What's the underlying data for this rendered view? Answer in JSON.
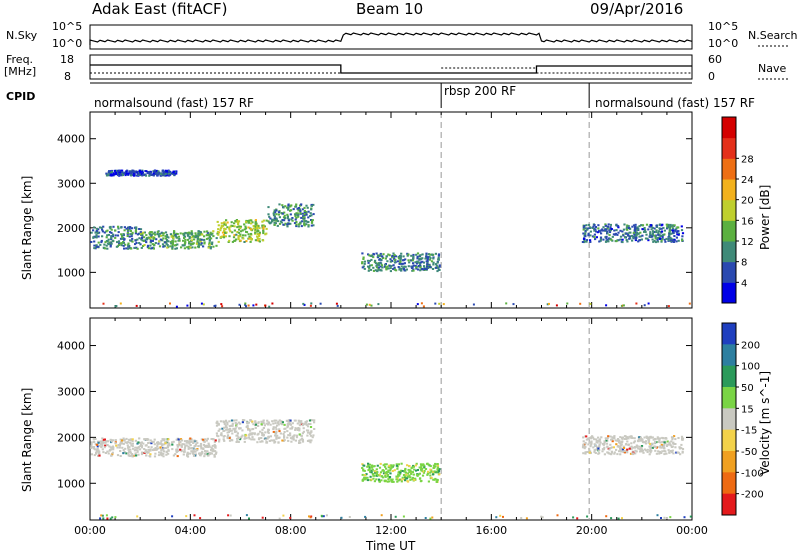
{
  "header": {
    "radar": "Adak East (fitACF)",
    "beam": "Beam 10",
    "date": "09/Apr/2016"
  },
  "aux": {
    "nsky_label": "N.Sky",
    "nsearch_label": "N.Search",
    "nsky_ticks": [
      "10^5",
      "10^0"
    ],
    "nsearch_ticks": [
      "10^5",
      "10^0"
    ],
    "freq_label": "Freq.",
    "freq_unit": "[MHz]",
    "freq_ticks": [
      "18",
      "8"
    ],
    "nave_label": "Nave",
    "nave_ticks": [
      "60",
      "0"
    ],
    "cpid_label": "CPID",
    "cpid_segments": [
      {
        "label": "normalsound (fast) 157 RF",
        "start_h": 0,
        "end_h": 14
      },
      {
        "label": "rbsp 200 RF",
        "start_h": 14,
        "end_h": 19.9
      },
      {
        "label": "normalsound (fast) 157 RF",
        "start_h": 19.9,
        "end_h": 24
      }
    ]
  },
  "chart_data": [
    {
      "type": "scatter",
      "name": "power",
      "ylabel": "Slant Range [km]",
      "ylim": [
        200,
        4600
      ],
      "xlim": [
        0,
        24
      ],
      "yticks": [
        "1000",
        "2000",
        "3000",
        "4000"
      ],
      "colorbar": {
        "label": "Power [dB]",
        "ticks": [
          "4",
          "8",
          "12",
          "16",
          "20",
          "24",
          "28"
        ],
        "colors": [
          "#0000e6",
          "#2a49b0",
          "#3f8a78",
          "#5bb040",
          "#bfcf2e",
          "#f2b11c",
          "#ee6f14",
          "#e4301a",
          "#d40000"
        ]
      },
      "bands": [
        {
          "x0": 0.0,
          "x1": 2.0,
          "y_center": 1800,
          "y_spread": 250,
          "level": 8
        },
        {
          "x0": 2.0,
          "x1": 5.0,
          "y_center": 1750,
          "y_spread": 200,
          "level": 10
        },
        {
          "x0": 5.0,
          "x1": 7.0,
          "y_center": 1950,
          "y_spread": 250,
          "level": 14
        },
        {
          "x0": 7.0,
          "x1": 8.9,
          "y_center": 2300,
          "y_spread": 250,
          "level": 9
        },
        {
          "x0": 0.6,
          "x1": 3.4,
          "y_center": 3250,
          "y_spread": 60,
          "level": 5
        },
        {
          "x0": 10.8,
          "x1": 13.9,
          "y_center": 1250,
          "y_spread": 200,
          "level": 8
        },
        {
          "x0": 19.6,
          "x1": 23.6,
          "y_center": 1900,
          "y_spread": 200,
          "level": 7
        }
      ]
    },
    {
      "type": "scatter",
      "name": "velocity",
      "ylabel": "Slant Range [km]",
      "ylim": [
        200,
        4600
      ],
      "xlim": [
        0,
        24
      ],
      "yticks": [
        "1000",
        "2000",
        "3000",
        "4000"
      ],
      "colorbar": {
        "label": "Velocity [m s^-1]",
        "ticks": [
          "200",
          "100",
          "50",
          "15",
          "-15",
          "-50",
          "-100",
          "-200"
        ],
        "colors": [
          "#1f3fbf",
          "#2d7fa0",
          "#2b9a5a",
          "#7ad445",
          "#c9c9c1",
          "#f3d24a",
          "#f0a020",
          "#ee6a12",
          "#e41a1c"
        ]
      },
      "bands": [
        {
          "x0": 0.0,
          "x1": 5.0,
          "y_center": 1800,
          "y_spread": 200,
          "level": 0
        },
        {
          "x0": 5.0,
          "x1": 8.9,
          "y_center": 2150,
          "y_spread": 250,
          "level": 0
        },
        {
          "x0": 10.8,
          "x1": 13.9,
          "y_center": 1250,
          "y_spread": 200,
          "level": 30
        },
        {
          "x0": 19.6,
          "x1": 23.6,
          "y_center": 1850,
          "y_spread": 200,
          "level": 0
        }
      ]
    }
  ],
  "xaxis": {
    "label": "Time UT",
    "ticks": [
      "00:00",
      "04:00",
      "08:00",
      "12:00",
      "16:00",
      "20:00",
      "00:00"
    ]
  }
}
